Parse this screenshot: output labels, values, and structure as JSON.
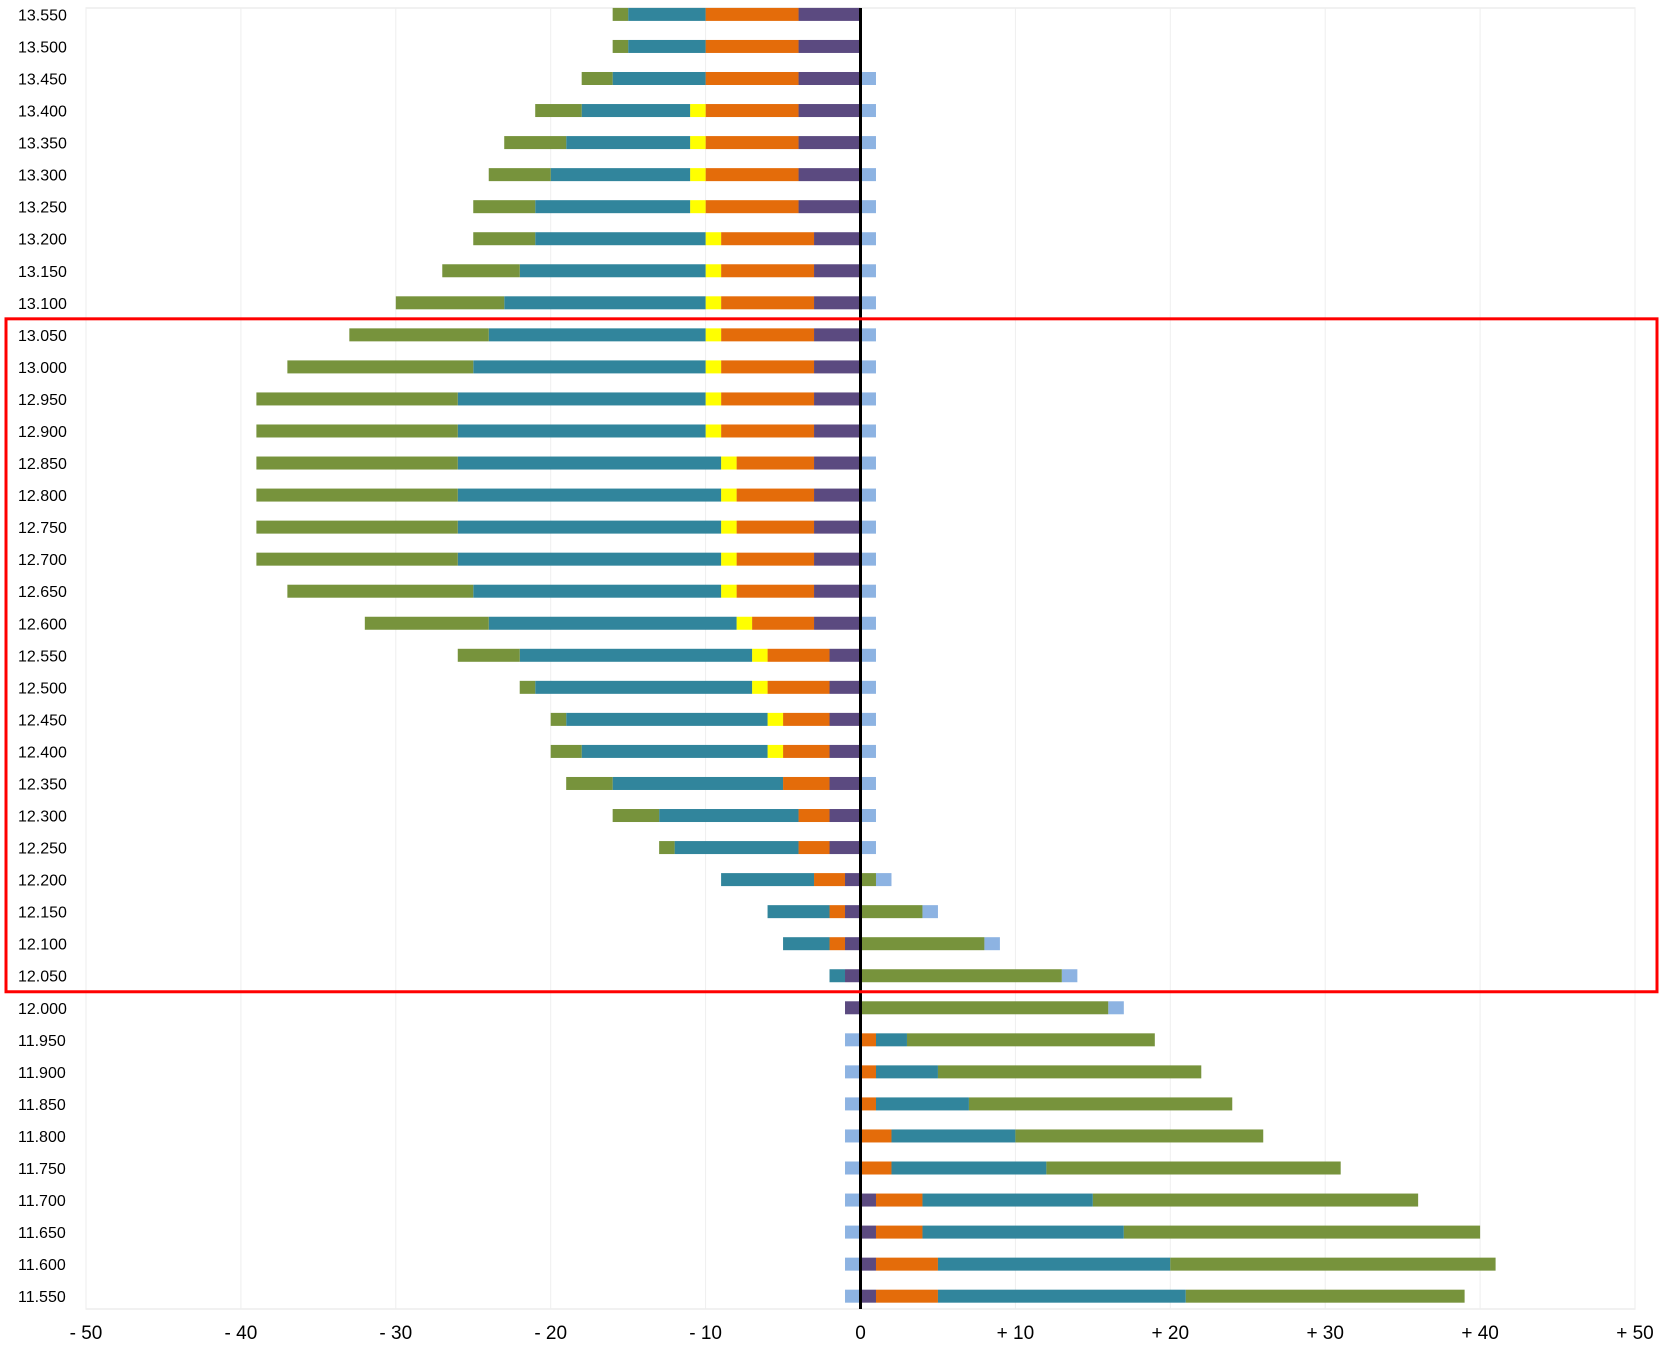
{
  "chart_data": {
    "type": "bar",
    "orientation": "horizontal",
    "stacked": true,
    "title": "",
    "xlabel": "",
    "ylabel": "",
    "xlim": [
      -50,
      50
    ],
    "x_ticks": [
      -50,
      -40,
      -30,
      -20,
      -10,
      0,
      10,
      20,
      30,
      40,
      50
    ],
    "x_tick_labels": [
      "- 50",
      "- 40",
      "- 30",
      "- 20",
      "- 10",
      "0",
      "+ 10",
      "+ 20",
      "+ 30",
      "+ 40",
      "+ 50"
    ],
    "grid": "vertical",
    "legend": "none",
    "categories": [
      "13.550",
      "13.500",
      "13.450",
      "13.400",
      "13.350",
      "13.300",
      "13.250",
      "13.200",
      "13.150",
      "13.100",
      "13.050",
      "13.000",
      "12.950",
      "12.900",
      "12.850",
      "12.800",
      "12.750",
      "12.700",
      "12.650",
      "12.600",
      "12.550",
      "12.500",
      "12.450",
      "12.400",
      "12.350",
      "12.300",
      "12.250",
      "12.200",
      "12.150",
      "12.100",
      "12.050",
      "12.000",
      "11.950",
      "11.900",
      "11.850",
      "11.800",
      "11.750",
      "11.700",
      "11.650",
      "11.600",
      "11.550"
    ],
    "series": [
      {
        "color": "#5b4a80",
        "values": [
          -4,
          -4,
          -4,
          -4,
          -4,
          -4,
          -4,
          -3,
          -3,
          -3,
          -3,
          -3,
          -3,
          -3,
          -3,
          -3,
          -3,
          -3,
          -3,
          -3,
          -2,
          -2,
          -2,
          -2,
          -2,
          -2,
          -2,
          -1,
          -1,
          -1,
          -1,
          -1,
          0,
          0,
          0,
          0,
          0,
          1,
          1,
          1,
          1
        ]
      },
      {
        "color": "#e46c0a",
        "values": [
          -6,
          -6,
          -6,
          -6,
          -6,
          -6,
          -6,
          -6,
          -6,
          -6,
          -6,
          -6,
          -6,
          -6,
          -5,
          -5,
          -5,
          -5,
          -5,
          -4,
          -4,
          -4,
          -3,
          -3,
          -3,
          -2,
          -2,
          -2,
          -1,
          -1,
          0,
          0,
          1,
          1,
          1,
          2,
          2,
          3,
          3,
          4,
          4
        ]
      },
      {
        "color": "#ffff00",
        "values": [
          0,
          0,
          0,
          -1,
          -1,
          -1,
          -1,
          -1,
          -1,
          -1,
          -1,
          -1,
          -1,
          -1,
          -1,
          -1,
          -1,
          -1,
          -1,
          -1,
          -1,
          -1,
          -1,
          -1,
          0,
          0,
          0,
          0,
          0,
          0,
          0,
          0,
          0,
          0,
          0,
          0,
          0,
          0,
          0,
          0,
          0
        ]
      },
      {
        "color": "#31859c",
        "values": [
          -5,
          -5,
          -6,
          -7,
          -8,
          -9,
          -10,
          -11,
          -12,
          -13,
          -14,
          -15,
          -16,
          -16,
          -17,
          -17,
          -17,
          -17,
          -16,
          -16,
          -15,
          -14,
          -13,
          -12,
          -11,
          -9,
          -8,
          -6,
          -4,
          -3,
          -1,
          0,
          2,
          4,
          6,
          8,
          10,
          11,
          13,
          15,
          16
        ]
      },
      {
        "color": "#77933c",
        "values": [
          -1,
          -1,
          -2,
          -3,
          -4,
          -4,
          -4,
          -4,
          -5,
          -7,
          -9,
          -12,
          -13,
          -13,
          -13,
          -13,
          -13,
          -13,
          -12,
          -8,
          -4,
          -1,
          -1,
          -2,
          -3,
          -3,
          -1,
          1,
          4,
          8,
          13,
          16,
          16,
          17,
          17,
          16,
          19,
          21,
          23,
          21,
          18
        ]
      },
      {
        "color": "#8db3e2",
        "values": [
          0,
          0,
          1,
          1,
          1,
          1,
          1,
          1,
          1,
          1,
          1,
          1,
          1,
          1,
          1,
          1,
          1,
          1,
          1,
          1,
          1,
          1,
          1,
          1,
          1,
          1,
          1,
          1,
          1,
          1,
          1,
          1,
          -1,
          -1,
          -1,
          -1,
          -1,
          -1,
          -1,
          -1,
          -1
        ]
      }
    ],
    "highlight": {
      "from": "13.050",
      "to": "12.050",
      "color": "#ff0000"
    }
  }
}
